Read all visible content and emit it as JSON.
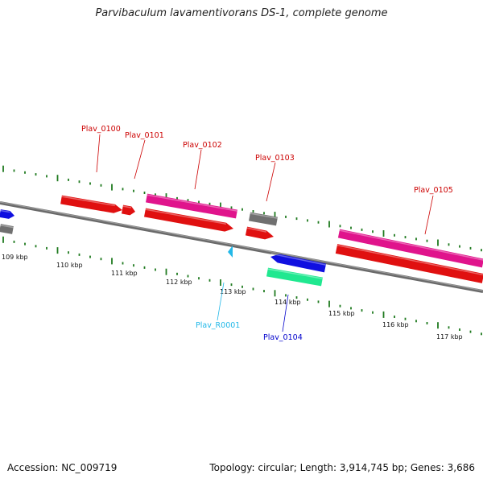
{
  "title": "Parvibaculum lavamentivorans DS-1, complete genome",
  "footer": {
    "accession": "Accession: NC_009719",
    "summary": "Topology: circular; Length: 3,914,745 bp; Genes: 3,686"
  },
  "colors": {
    "backbone": "#777777",
    "tick": "#1f7a1f",
    "cds": "#e01010",
    "pink": "#e0148c",
    "gray": "#707070",
    "blue": "#1010e0",
    "teal": "#20e890",
    "rna": "#22b8e8",
    "label_red": "#cc0000",
    "label_blue": "#0000cc",
    "label_cyan": "#22b8e8"
  },
  "kbp_labels": [
    "109 kbp",
    "110 kbp",
    "111 kbp",
    "112 kbp",
    "113 kbp",
    "114 kbp",
    "115 kbp",
    "116 kbp",
    "117 kbp"
  ],
  "gene_labels": [
    {
      "text": "Plav_0100",
      "color": "label_red"
    },
    {
      "text": "Plav_0101",
      "color": "label_red"
    },
    {
      "text": "Plav_0102",
      "color": "label_red"
    },
    {
      "text": "Plav_0103",
      "color": "label_red"
    },
    {
      "text": "Plav_0105",
      "color": "label_red"
    },
    {
      "text": "Plav_R0001",
      "color": "label_cyan"
    },
    {
      "text": "Plav_0104",
      "color": "label_blue"
    }
  ]
}
